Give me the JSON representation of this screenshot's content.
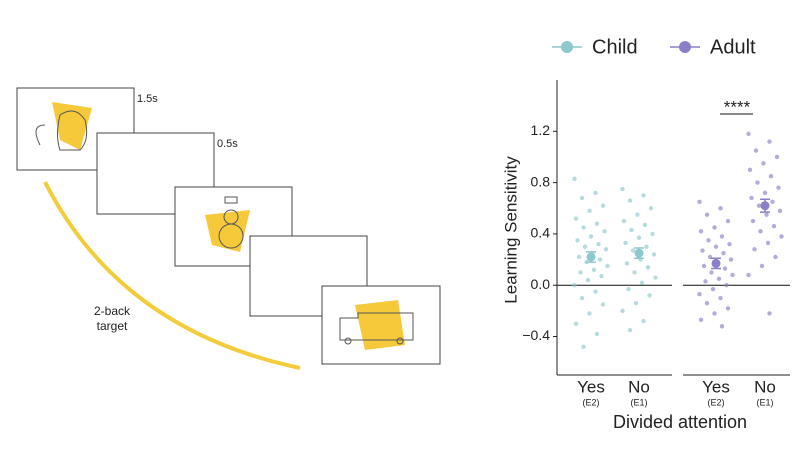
{
  "diagram": {
    "frame_labels": [
      "1.5s",
      "0.5s"
    ],
    "arc_label": [
      "2-back",
      "target"
    ]
  },
  "chart_data": {
    "type": "strip",
    "y_label": "Learning Sensitivity",
    "x_label": "Divided attention",
    "ylim": [
      -0.7,
      1.6
    ],
    "yticks": [
      {
        "value": -0.4,
        "label": "−0.4"
      },
      {
        "value": 0,
        "label": "0.0"
      },
      0.4,
      0.8,
      1.2
    ],
    "ref_line": 0,
    "series": [
      {
        "name": "Child",
        "color": "#8fc8cc"
      },
      {
        "name": "Adult",
        "color": "#8b7fc7"
      }
    ],
    "categories": [
      {
        "label": "Yes",
        "sub": "(E2)"
      },
      {
        "label": "No",
        "sub": "(E1)"
      }
    ],
    "groups": [
      {
        "series": 0,
        "category": 0,
        "mean": 0.22,
        "error": 0.04,
        "points": [
          0.83,
          0.72,
          0.68,
          0.62,
          0.58,
          0.52,
          0.48,
          0.45,
          0.42,
          0.38,
          0.35,
          0.32,
          0.3,
          0.28,
          0.25,
          0.22,
          0.2,
          0.18,
          0.15,
          0.12,
          0.1,
          0.07,
          0.04,
          0.0,
          -0.05,
          -0.1,
          -0.15,
          -0.22,
          -0.3,
          -0.38,
          -0.48
        ]
      },
      {
        "series": 0,
        "category": 1,
        "mean": 0.25,
        "error": 0.04,
        "points": [
          0.75,
          0.7,
          0.66,
          0.6,
          0.55,
          0.5,
          0.47,
          0.43,
          0.4,
          0.37,
          0.33,
          0.3,
          0.27,
          0.24,
          0.2,
          0.17,
          0.14,
          0.1,
          0.06,
          0.02,
          -0.03,
          -0.08,
          -0.14,
          -0.2,
          -0.28,
          -0.35
        ]
      },
      {
        "series": 1,
        "category": 0,
        "mean": 0.17,
        "error": 0.04,
        "points": [
          0.65,
          0.6,
          0.55,
          0.5,
          0.45,
          0.42,
          0.38,
          0.35,
          0.32,
          0.3,
          0.27,
          0.25,
          0.22,
          0.2,
          0.18,
          0.15,
          0.13,
          0.1,
          0.08,
          0.05,
          0.03,
          0.0,
          -0.03,
          -0.07,
          -0.1,
          -0.14,
          -0.18,
          -0.22,
          -0.27,
          -0.32
        ]
      },
      {
        "series": 1,
        "category": 1,
        "mean": 0.62,
        "error": 0.05,
        "points": [
          1.18,
          1.12,
          1.05,
          1.0,
          0.95,
          0.9,
          0.85,
          0.8,
          0.76,
          0.72,
          0.68,
          0.65,
          0.62,
          0.58,
          0.55,
          0.5,
          0.46,
          0.42,
          0.38,
          0.33,
          0.28,
          0.22,
          0.15,
          0.08,
          -0.22
        ]
      }
    ],
    "annotation": "****"
  }
}
